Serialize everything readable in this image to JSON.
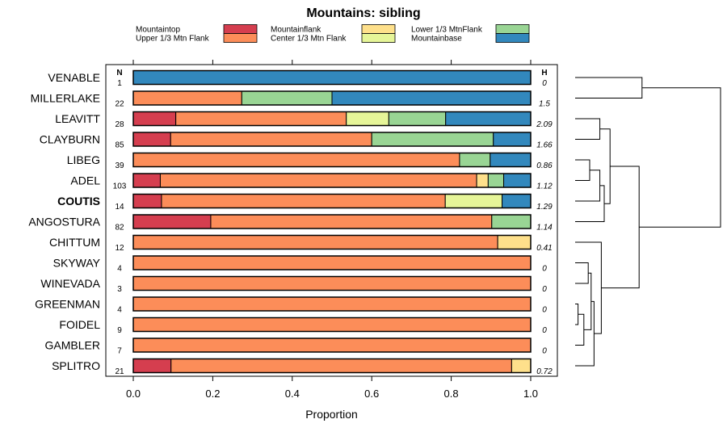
{
  "chart_data": {
    "type": "stacked-bar",
    "title": "Mountains: sibling",
    "xlabel": "Proportion",
    "xlim": [
      0,
      1
    ],
    "xticks": [
      "0.0",
      "0.2",
      "0.4",
      "0.6",
      "0.8",
      "1.0"
    ],
    "n_header": "N",
    "h_header": "H",
    "series": [
      {
        "name": "Mountaintop",
        "color": "#d53e4f"
      },
      {
        "name": "Upper 1/3 Mtn Flank",
        "color": "#fc8d59"
      },
      {
        "name": "Mountainflank",
        "color": "#fee08b"
      },
      {
        "name": "Center 1/3 Mtn Flank",
        "color": "#e6f598"
      },
      {
        "name": "Lower 1/3 MtnFlank",
        "color": "#99d594"
      },
      {
        "name": "Mountainbase",
        "color": "#3288bd"
      }
    ],
    "rows": [
      {
        "label": "VENABLE",
        "n": "1",
        "h": "0",
        "bold": false,
        "values": [
          0,
          0,
          0,
          0,
          0,
          1.0
        ]
      },
      {
        "label": "MILLERLAKE",
        "n": "22",
        "h": "1.5",
        "bold": false,
        "values": [
          0,
          0.273,
          0,
          0,
          0.227,
          0.5
        ]
      },
      {
        "label": "LEAVITT",
        "n": "28",
        "h": "2.09",
        "bold": false,
        "values": [
          0.107,
          0.429,
          0,
          0.107,
          0.143,
          0.214
        ]
      },
      {
        "label": "CLAYBURN",
        "n": "85",
        "h": "1.66",
        "bold": false,
        "values": [
          0.094,
          0.506,
          0,
          0,
          0.306,
          0.094
        ]
      },
      {
        "label": "LIBEG",
        "n": "39",
        "h": "0.86",
        "bold": false,
        "values": [
          0,
          0.821,
          0,
          0,
          0.077,
          0.102
        ]
      },
      {
        "label": "ADEL",
        "n": "103",
        "h": "1.12",
        "bold": false,
        "values": [
          0.068,
          0.796,
          0.029,
          0,
          0.039,
          0.068
        ]
      },
      {
        "label": "COUTIS",
        "n": "14",
        "h": "1.29",
        "bold": true,
        "values": [
          0.071,
          0.714,
          0,
          0.143,
          0,
          0.072
        ]
      },
      {
        "label": "ANGOSTURA",
        "n": "82",
        "h": "1.14",
        "bold": false,
        "values": [
          0.195,
          0.707,
          0,
          0,
          0.098,
          0
        ]
      },
      {
        "label": "CHITTUM",
        "n": "12",
        "h": "0.41",
        "bold": false,
        "values": [
          0,
          0.917,
          0.083,
          0,
          0,
          0
        ]
      },
      {
        "label": "SKYWAY",
        "n": "4",
        "h": "0",
        "bold": false,
        "values": [
          0,
          1.0,
          0,
          0,
          0,
          0
        ]
      },
      {
        "label": "WINEVADA",
        "n": "3",
        "h": "0",
        "bold": false,
        "values": [
          0,
          1.0,
          0,
          0,
          0,
          0
        ]
      },
      {
        "label": "GREENMAN",
        "n": "4",
        "h": "0",
        "bold": false,
        "values": [
          0,
          1.0,
          0,
          0,
          0,
          0
        ]
      },
      {
        "label": "FOIDEL",
        "n": "9",
        "h": "0",
        "bold": false,
        "values": [
          0,
          1.0,
          0,
          0,
          0,
          0
        ]
      },
      {
        "label": "GAMBLER",
        "n": "7",
        "h": "0",
        "bold": false,
        "values": [
          0,
          1.0,
          0,
          0,
          0,
          0
        ]
      },
      {
        "label": "SPLITRO",
        "n": "21",
        "h": "0.72",
        "bold": false,
        "values": [
          0.095,
          0.857,
          0.048,
          0,
          0,
          0
        ]
      }
    ],
    "dendrogram": {
      "merges": [
        [
          11,
          12,
          0.02
        ],
        [
          -1,
          13,
          0.06
        ],
        [
          9,
          10,
          0.09
        ],
        [
          -3,
          -2,
          0.11
        ],
        [
          -4,
          14,
          0.13
        ],
        [
          8,
          -5,
          0.18
        ],
        [
          4,
          5,
          0.1
        ],
        [
          -7,
          6,
          0.17
        ],
        [
          -8,
          7,
          0.2
        ],
        [
          2,
          3,
          0.17
        ],
        [
          -10,
          -9,
          0.24
        ],
        [
          -11,
          -6,
          0.44
        ],
        [
          0,
          1,
          0.46
        ],
        [
          -13,
          -12,
          1.0
        ]
      ]
    }
  }
}
